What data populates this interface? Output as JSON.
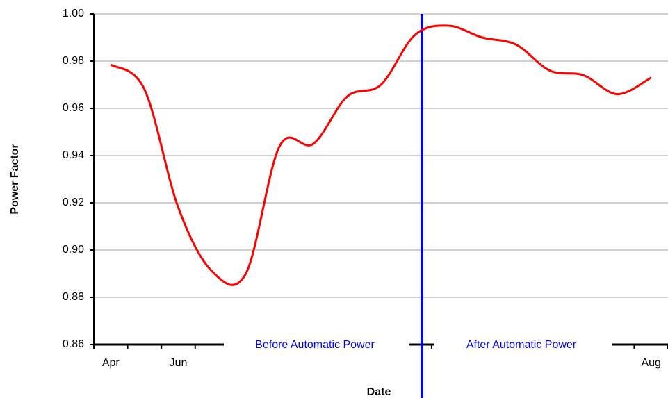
{
  "chart_data": {
    "type": "line",
    "x_label": "Date",
    "y_label": "Power Factor",
    "categories": [
      "Apr",
      null,
      "Jun",
      null,
      null,
      null,
      null,
      null,
      null,
      null,
      null,
      null,
      null,
      null,
      null,
      null,
      "Aug"
    ],
    "series": [
      {
        "name": "Power Factor",
        "color": "#ff0000",
        "values": [
          0.9785,
          0.968,
          0.918,
          0.891,
          0.89,
          0.944,
          0.945,
          0.965,
          0.97,
          0.991,
          0.995,
          0.99,
          0.987,
          0.976,
          0.974,
          0.966,
          0.973
        ]
      }
    ],
    "ylim": [
      0.86,
      1.0
    ],
    "yticks": [
      0.86,
      0.88,
      {
        "value": 0.9,
        "label": "0.90"
      },
      0.92,
      0.94,
      0.96,
      0.98,
      {
        "value": 1.0,
        "label": "1.00"
      }
    ],
    "grid": true,
    "annotations": [
      "Before Automatic Power",
      "After Automatic Power"
    ],
    "annotation_color": "#0000ff"
  }
}
